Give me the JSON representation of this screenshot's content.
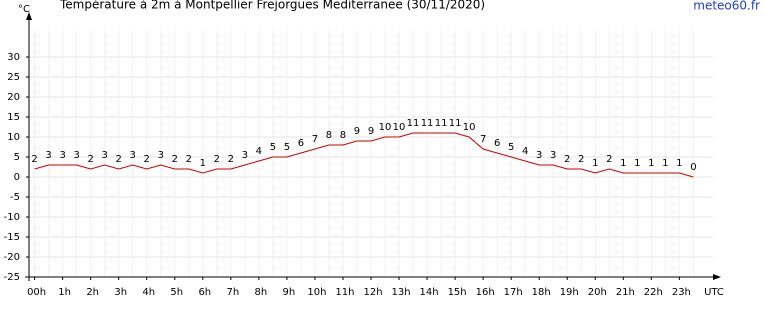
{
  "chart_data": {
    "type": "line",
    "title": "Température à 2m à Montpellier Frejorgues Mediterranee (30/11/2020)",
    "y_label": "°C",
    "x_label": "UTC",
    "source": "meteo60.fr",
    "x": [
      0,
      0.5,
      1,
      1.5,
      2,
      2.5,
      3,
      3.5,
      4,
      4.5,
      5,
      5.5,
      6,
      6.5,
      7,
      7.5,
      8,
      8.5,
      9,
      9.5,
      10,
      10.5,
      11,
      11.5,
      12,
      12.5,
      13,
      13.5,
      14,
      14.5,
      15,
      15.5,
      16,
      16.5,
      17,
      17.5,
      18,
      18.5,
      19,
      19.5,
      20,
      20.5,
      21,
      21.5,
      22,
      22.5,
      23,
      23.5
    ],
    "series": [
      {
        "name": "Température",
        "color": "#cc0000",
        "values": [
          2,
          3,
          3,
          3,
          2,
          3,
          2,
          3,
          2,
          3,
          2,
          2,
          1,
          2,
          2,
          3,
          4,
          5,
          5,
          6,
          7,
          8,
          8,
          9,
          9,
          10,
          10,
          11,
          11,
          11,
          11,
          10,
          7,
          6,
          5,
          4,
          3,
          3,
          2,
          2,
          1,
          2,
          1,
          1,
          1,
          1,
          1,
          0
        ]
      }
    ],
    "xlim": [
      -0.2,
      24.2
    ],
    "ylim": [
      -25,
      35
    ],
    "xticks": [
      {
        "value": 0,
        "label": "00h"
      },
      {
        "value": 1,
        "label": "1h"
      },
      {
        "value": 2,
        "label": "2h"
      },
      {
        "value": 3,
        "label": "3h"
      },
      {
        "value": 4,
        "label": "4h"
      },
      {
        "value": 5,
        "label": "5h"
      },
      {
        "value": 6,
        "label": "6h"
      },
      {
        "value": 7,
        "label": "7h"
      },
      {
        "value": 8,
        "label": "8h"
      },
      {
        "value": 9,
        "label": "9h"
      },
      {
        "value": 10,
        "label": "10h"
      },
      {
        "value": 11,
        "label": "11h"
      },
      {
        "value": 12,
        "label": "12h"
      },
      {
        "value": 13,
        "label": "13h"
      },
      {
        "value": 14,
        "label": "14h"
      },
      {
        "value": 15,
        "label": "15h"
      },
      {
        "value": 16,
        "label": "16h"
      },
      {
        "value": 17,
        "label": "17h"
      },
      {
        "value": 18,
        "label": "18h"
      },
      {
        "value": 19,
        "label": "19h"
      },
      {
        "value": 20,
        "label": "20h"
      },
      {
        "value": 21,
        "label": "21h"
      },
      {
        "value": 22,
        "label": "22h"
      },
      {
        "value": 23,
        "label": "23h"
      }
    ],
    "yticks": [
      30,
      25,
      20,
      15,
      10,
      5,
      0,
      -5,
      -10,
      -15,
      -20,
      -25
    ],
    "grid": true
  }
}
